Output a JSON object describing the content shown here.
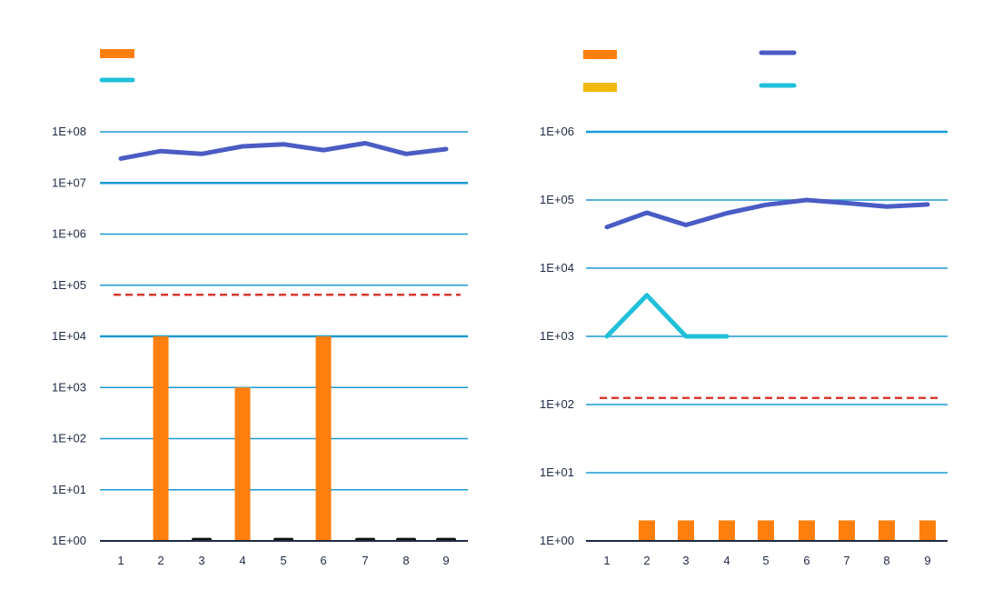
{
  "colors": {
    "grid": "#1b9ad6",
    "bar": "#ff7f0e",
    "bar_left_small": "#111111",
    "line_primary": "#4a5cc4",
    "line_secondary": "#20c0d8",
    "legend_yellow": "#f2b90c",
    "threshold": "#d93a2f",
    "axis": "#1f2a44"
  },
  "chart_data": [
    {
      "type": "bar+line",
      "scale": "log10",
      "ylim_exp": [
        0,
        8
      ],
      "ytick_labels": [
        "1E+00",
        "1E+01",
        "1E+02",
        "1E+03",
        "1E+04",
        "1E+05",
        "1E+06",
        "1E+07",
        "1E+08"
      ],
      "categories": [
        "1",
        "2",
        "3",
        "4",
        "5",
        "6",
        "7",
        "8",
        "9"
      ],
      "bars": [
        null,
        10000,
        1.15,
        1000,
        1.15,
        10000,
        1.15,
        1.15,
        1.15
      ],
      "line": [
        30000000,
        42000000,
        37000000,
        52000000,
        57000000,
        44000000,
        60000000,
        37000000,
        46000000
      ],
      "threshold": 65000,
      "legend": [
        {
          "kind": "bar",
          "color_key": "bar"
        },
        {
          "kind": "line",
          "color_key": "line_secondary"
        }
      ]
    },
    {
      "type": "bar+line",
      "scale": "log10",
      "ylim_exp": [
        0,
        6
      ],
      "ytick_labels": [
        "1E+00",
        "1E+01",
        "1E+02",
        "1E+03",
        "1E+04",
        "1E+05",
        "1E+06"
      ],
      "categories": [
        "1",
        "2",
        "3",
        "4",
        "5",
        "6",
        "7",
        "8",
        "9"
      ],
      "bars": [
        null,
        2,
        2,
        2,
        2,
        2,
        2,
        2,
        2
      ],
      "line_primary": [
        40000,
        65000,
        43000,
        64000,
        85000,
        100000,
        90000,
        80000,
        86000
      ],
      "line_secondary": [
        1000,
        4000,
        1000,
        1000,
        null,
        null,
        null,
        null,
        null
      ],
      "threshold": 125,
      "legend": [
        {
          "kind": "bar",
          "color_key": "bar"
        },
        {
          "kind": "bar",
          "color_key": "legend_yellow"
        },
        {
          "kind": "line",
          "color_key": "line_primary"
        },
        {
          "kind": "line",
          "color_key": "line_secondary"
        }
      ]
    }
  ]
}
